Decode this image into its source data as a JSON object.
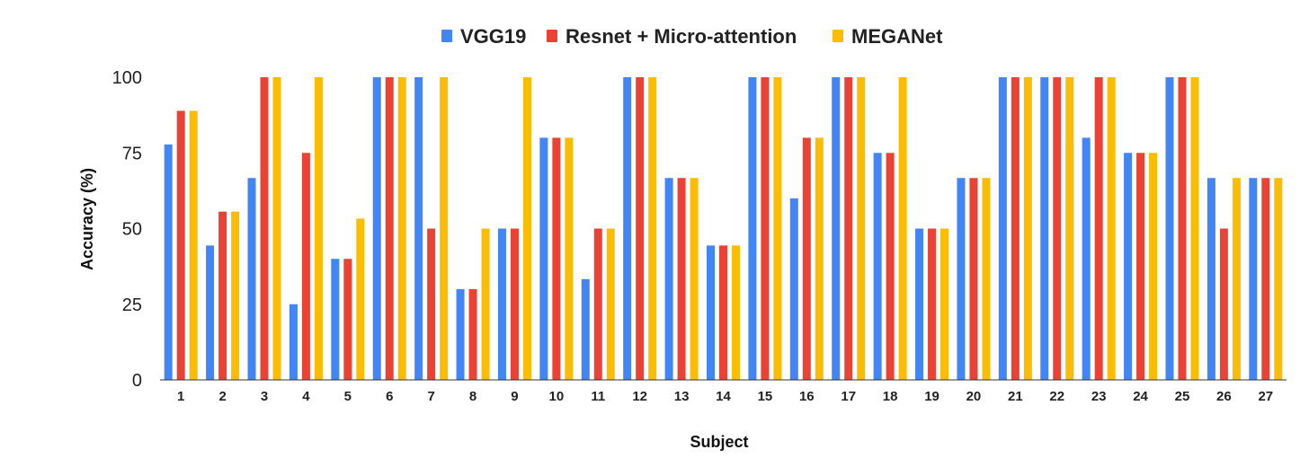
{
  "chart_data": {
    "type": "bar",
    "title": "",
    "xlabel": "Subject",
    "ylabel": "Accuracy (%)",
    "ylim": [
      0,
      100
    ],
    "yticks": [
      "0",
      "25",
      "50",
      "75",
      "100"
    ],
    "grid": false,
    "legend_position": "top-center",
    "categories": [
      "1",
      "2",
      "3",
      "4",
      "5",
      "6",
      "7",
      "8",
      "9",
      "10",
      "11",
      "12",
      "13",
      "14",
      "15",
      "16",
      "17",
      "18",
      "19",
      "20",
      "21",
      "22",
      "23",
      "24",
      "25",
      "26",
      "27"
    ],
    "series": [
      {
        "name": "VGG19",
        "color": "#4285F4",
        "values": [
          77.8,
          44.4,
          66.7,
          25,
          40,
          100,
          100,
          30,
          50,
          80,
          33.3,
          100,
          66.7,
          44.4,
          100,
          60,
          100,
          75,
          50,
          66.7,
          100,
          100,
          80,
          75,
          100,
          66.7,
          66.7
        ]
      },
      {
        "name": "Resnet + Micro-attention",
        "color": "#EA4335",
        "values": [
          88.9,
          55.6,
          100,
          75,
          40,
          100,
          50,
          30,
          50,
          80,
          50,
          100,
          66.7,
          44.4,
          100,
          80,
          100,
          75,
          50,
          66.7,
          100,
          100,
          100,
          75,
          100,
          50,
          66.7
        ]
      },
      {
        "name": "MEGANet",
        "color": "#FBBC04",
        "values": [
          88.9,
          55.6,
          100,
          100,
          53.3,
          100,
          100,
          50,
          100,
          80,
          50,
          100,
          66.7,
          44.4,
          100,
          80,
          100,
          100,
          50,
          66.7,
          100,
          100,
          100,
          75,
          100,
          66.7,
          66.7
        ]
      }
    ]
  }
}
